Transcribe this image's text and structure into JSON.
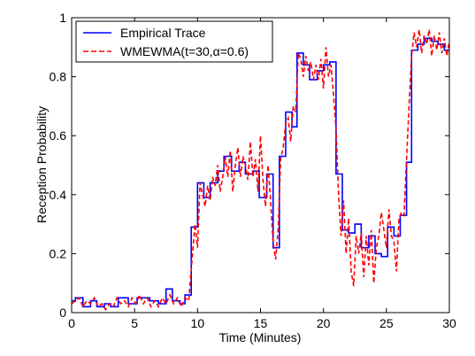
{
  "chart_data": {
    "type": "line",
    "title": "",
    "xlabel": "Time (Minutes)",
    "ylabel": "Reception Probability",
    "xlim": [
      0,
      30
    ],
    "ylim": [
      0,
      1
    ],
    "xticks": [
      "0",
      "5",
      "10",
      "15",
      "20",
      "25",
      "30"
    ],
    "yticks": [
      "0",
      "0.2",
      "0.4",
      "0.6",
      "0.8",
      "1"
    ],
    "grid": false,
    "legend_position": "top-left",
    "series": [
      {
        "name": "Empirical Trace",
        "style": "solid-step",
        "color": "#0000ff",
        "points": [
          [
            0.0,
            0.04
          ],
          [
            0.3,
            0.05
          ],
          [
            0.9,
            0.02
          ],
          [
            1.5,
            0.04
          ],
          [
            2.0,
            0.02
          ],
          [
            2.6,
            0.03
          ],
          [
            3.1,
            0.02
          ],
          [
            3.7,
            0.05
          ],
          [
            4.5,
            0.03
          ],
          [
            5.2,
            0.05
          ],
          [
            6.2,
            0.04
          ],
          [
            6.9,
            0.03
          ],
          [
            7.5,
            0.08
          ],
          [
            8.0,
            0.04
          ],
          [
            8.6,
            0.03
          ],
          [
            9.0,
            0.06
          ],
          [
            9.5,
            0.29
          ],
          [
            10.0,
            0.44
          ],
          [
            10.5,
            0.39
          ],
          [
            11.0,
            0.44
          ],
          [
            11.6,
            0.48
          ],
          [
            12.1,
            0.53
          ],
          [
            12.7,
            0.48
          ],
          [
            13.3,
            0.51
          ],
          [
            13.8,
            0.47
          ],
          [
            14.4,
            0.48
          ],
          [
            14.9,
            0.39
          ],
          [
            15.5,
            0.47
          ],
          [
            16.0,
            0.22
          ],
          [
            16.5,
            0.53
          ],
          [
            17.0,
            0.68
          ],
          [
            17.5,
            0.63
          ],
          [
            17.9,
            0.88
          ],
          [
            18.4,
            0.84
          ],
          [
            18.9,
            0.79
          ],
          [
            19.5,
            0.82
          ],
          [
            20.0,
            0.84
          ],
          [
            20.5,
            0.85
          ],
          [
            21.0,
            0.47
          ],
          [
            21.5,
            0.28
          ],
          [
            22.0,
            0.27
          ],
          [
            22.5,
            0.3
          ],
          [
            23.0,
            0.22
          ],
          [
            23.6,
            0.26
          ],
          [
            24.1,
            0.2
          ],
          [
            24.6,
            0.19
          ],
          [
            25.1,
            0.29
          ],
          [
            25.6,
            0.26
          ],
          [
            26.1,
            0.33
          ],
          [
            26.6,
            0.51
          ],
          [
            27.0,
            0.89
          ],
          [
            27.5,
            0.91
          ],
          [
            28.0,
            0.93
          ],
          [
            28.6,
            0.92
          ],
          [
            29.1,
            0.91
          ],
          [
            29.6,
            0.89
          ]
        ]
      },
      {
        "name": "WMEWMA(t=30,α=0.6)",
        "style": "dashed",
        "color": "#ff0000",
        "points": [
          [
            0.0,
            0.03
          ],
          [
            0.3,
            0.04
          ],
          [
            0.6,
            0.05
          ],
          [
            0.9,
            0.02
          ],
          [
            1.2,
            0.04
          ],
          [
            1.5,
            0.03
          ],
          [
            1.8,
            0.05
          ],
          [
            2.1,
            0.02
          ],
          [
            2.4,
            0.03
          ],
          [
            2.7,
            0.01
          ],
          [
            3.0,
            0.03
          ],
          [
            3.3,
            0.02
          ],
          [
            3.6,
            0.05
          ],
          [
            3.9,
            0.03
          ],
          [
            4.2,
            0.04
          ],
          [
            4.5,
            0.02
          ],
          [
            4.8,
            0.05
          ],
          [
            5.1,
            0.03
          ],
          [
            5.4,
            0.06
          ],
          [
            5.7,
            0.03
          ],
          [
            6.0,
            0.05
          ],
          [
            6.3,
            0.02
          ],
          [
            6.6,
            0.04
          ],
          [
            6.9,
            0.02
          ],
          [
            7.2,
            0.05
          ],
          [
            7.5,
            0.03
          ],
          [
            7.8,
            0.06
          ],
          [
            8.1,
            0.03
          ],
          [
            8.4,
            0.05
          ],
          [
            8.7,
            0.02
          ],
          [
            9.0,
            0.05
          ],
          [
            9.3,
            0.04
          ],
          [
            9.6,
            0.2
          ],
          [
            9.8,
            0.3
          ],
          [
            10.0,
            0.22
          ],
          [
            10.2,
            0.44
          ],
          [
            10.4,
            0.4
          ],
          [
            10.6,
            0.36
          ],
          [
            10.8,
            0.43
          ],
          [
            11.0,
            0.38
          ],
          [
            11.2,
            0.46
          ],
          [
            11.4,
            0.43
          ],
          [
            11.6,
            0.5
          ],
          [
            11.8,
            0.41
          ],
          [
            12.0,
            0.46
          ],
          [
            12.2,
            0.53
          ],
          [
            12.4,
            0.46
          ],
          [
            12.6,
            0.55
          ],
          [
            12.8,
            0.41
          ],
          [
            13.0,
            0.5
          ],
          [
            13.2,
            0.56
          ],
          [
            13.4,
            0.46
          ],
          [
            13.6,
            0.53
          ],
          [
            13.8,
            0.5
          ],
          [
            14.0,
            0.45
          ],
          [
            14.2,
            0.58
          ],
          [
            14.4,
            0.46
          ],
          [
            14.6,
            0.52
          ],
          [
            14.8,
            0.41
          ],
          [
            15.0,
            0.6
          ],
          [
            15.2,
            0.45
          ],
          [
            15.4,
            0.36
          ],
          [
            15.6,
            0.5
          ],
          [
            15.8,
            0.38
          ],
          [
            16.0,
            0.24
          ],
          [
            16.2,
            0.18
          ],
          [
            16.4,
            0.28
          ],
          [
            16.6,
            0.52
          ],
          [
            16.8,
            0.56
          ],
          [
            17.0,
            0.64
          ],
          [
            17.2,
            0.66
          ],
          [
            17.4,
            0.58
          ],
          [
            17.6,
            0.7
          ],
          [
            17.8,
            0.68
          ],
          [
            18.0,
            0.88
          ],
          [
            18.2,
            0.86
          ],
          [
            18.4,
            0.8
          ],
          [
            18.6,
            0.87
          ],
          [
            18.8,
            0.82
          ],
          [
            19.0,
            0.85
          ],
          [
            19.2,
            0.79
          ],
          [
            19.4,
            0.84
          ],
          [
            19.6,
            0.79
          ],
          [
            19.8,
            0.86
          ],
          [
            20.0,
            0.76
          ],
          [
            20.2,
            0.9
          ],
          [
            20.4,
            0.8
          ],
          [
            20.6,
            0.84
          ],
          [
            20.8,
            0.74
          ],
          [
            21.0,
            0.62
          ],
          [
            21.2,
            0.4
          ],
          [
            21.4,
            0.26
          ],
          [
            21.6,
            0.38
          ],
          [
            21.8,
            0.2
          ],
          [
            22.0,
            0.32
          ],
          [
            22.2,
            0.14
          ],
          [
            22.4,
            0.09
          ],
          [
            22.6,
            0.26
          ],
          [
            22.8,
            0.2
          ],
          [
            23.0,
            0.27
          ],
          [
            23.2,
            0.12
          ],
          [
            23.4,
            0.26
          ],
          [
            23.6,
            0.16
          ],
          [
            23.8,
            0.28
          ],
          [
            24.0,
            0.1
          ],
          [
            24.2,
            0.22
          ],
          [
            24.4,
            0.26
          ],
          [
            24.6,
            0.34
          ],
          [
            24.8,
            0.28
          ],
          [
            25.0,
            0.22
          ],
          [
            25.2,
            0.35
          ],
          [
            25.4,
            0.26
          ],
          [
            25.6,
            0.24
          ],
          [
            25.8,
            0.14
          ],
          [
            26.0,
            0.32
          ],
          [
            26.2,
            0.34
          ],
          [
            26.4,
            0.33
          ],
          [
            26.6,
            0.52
          ],
          [
            26.8,
            0.7
          ],
          [
            27.0,
            0.87
          ],
          [
            27.2,
            0.95
          ],
          [
            27.4,
            0.9
          ],
          [
            27.6,
            0.96
          ],
          [
            27.8,
            0.88
          ],
          [
            28.0,
            0.94
          ],
          [
            28.2,
            0.91
          ],
          [
            28.4,
            0.96
          ],
          [
            28.6,
            0.87
          ],
          [
            28.8,
            0.94
          ],
          [
            29.0,
            0.89
          ],
          [
            29.2,
            0.95
          ],
          [
            29.4,
            0.88
          ],
          [
            29.6,
            0.93
          ],
          [
            29.8,
            0.87
          ],
          [
            30.0,
            0.92
          ]
        ]
      }
    ]
  }
}
